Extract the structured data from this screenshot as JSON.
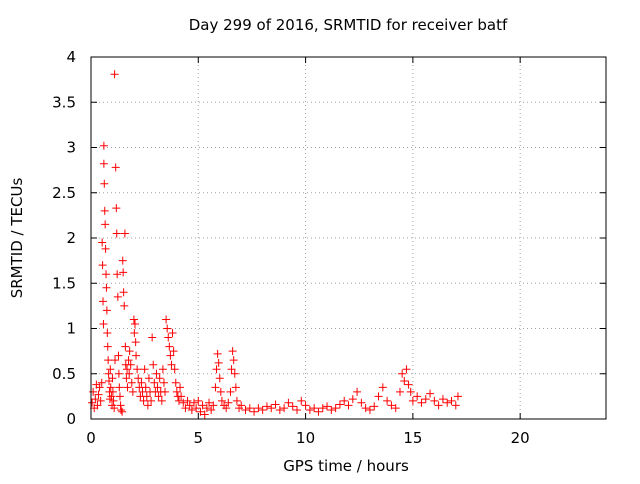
{
  "chart_data": {
    "type": "scatter",
    "title": "Day 299 of 2016, SRMTID for receiver batf",
    "xlabel": "GPS time / hours",
    "ylabel": "SRMTID / TECUs",
    "xlim": [
      0,
      24
    ],
    "ylim": [
      0,
      4
    ],
    "xticks": [
      0,
      5,
      10,
      15,
      20
    ],
    "yticks": [
      0,
      0.5,
      1,
      1.5,
      2,
      2.5,
      3,
      3.5,
      4
    ],
    "xtick_labels": [
      "0",
      "5",
      "10",
      "15",
      "20"
    ],
    "ytick_labels": [
      "0",
      "0.5",
      "1",
      "1.5",
      "2",
      "2.5",
      "3",
      "3.5",
      "4"
    ],
    "grid": true,
    "marker": "+",
    "color": "#ff0000",
    "series": [
      {
        "values": [
          [
            0.05,
            0.18
          ],
          [
            0.1,
            0.3
          ],
          [
            0.15,
            0.12
          ],
          [
            0.2,
            0.22
          ],
          [
            0.25,
            0.38
          ],
          [
            0.3,
            0.15
          ],
          [
            0.35,
            0.27
          ],
          [
            0.4,
            0.35
          ],
          [
            0.45,
            0.2
          ],
          [
            0.5,
            0.4
          ],
          [
            0.52,
            1.95
          ],
          [
            0.54,
            1.7
          ],
          [
            0.56,
            1.3
          ],
          [
            0.58,
            1.05
          ],
          [
            0.6,
            3.02
          ],
          [
            0.6,
            2.82
          ],
          [
            0.62,
            2.6
          ],
          [
            0.64,
            2.3
          ],
          [
            0.66,
            2.15
          ],
          [
            0.68,
            1.88
          ],
          [
            0.7,
            1.6
          ],
          [
            0.72,
            1.45
          ],
          [
            0.74,
            1.2
          ],
          [
            0.76,
            0.95
          ],
          [
            0.78,
            0.8
          ],
          [
            0.8,
            0.65
          ],
          [
            0.82,
            0.5
          ],
          [
            0.84,
            0.42
          ],
          [
            0.86,
            0.3
          ],
          [
            0.88,
            0.22
          ],
          [
            0.9,
            0.55
          ],
          [
            0.92,
            0.35
          ],
          [
            0.95,
            0.25
          ],
          [
            0.98,
            0.15
          ],
          [
            1.0,
            0.45
          ],
          [
            1.02,
            0.3
          ],
          [
            1.05,
            0.2
          ],
          [
            1.08,
            0.12
          ],
          [
            1.1,
            3.81
          ],
          [
            1.12,
            0.65
          ],
          [
            1.15,
            2.78
          ],
          [
            1.18,
            2.33
          ],
          [
            1.2,
            2.05
          ],
          [
            1.22,
            1.6
          ],
          [
            1.25,
            1.35
          ],
          [
            1.28,
            0.7
          ],
          [
            1.3,
            0.5
          ],
          [
            1.32,
            0.35
          ],
          [
            1.35,
            0.25
          ],
          [
            1.38,
            0.15
          ],
          [
            1.4,
            0.1
          ],
          [
            1.45,
            0.08
          ],
          [
            1.48,
            1.75
          ],
          [
            1.5,
            1.62
          ],
          [
            1.52,
            1.4
          ],
          [
            1.55,
            1.25
          ],
          [
            1.58,
            2.05
          ],
          [
            1.6,
            0.8
          ],
          [
            1.62,
            0.6
          ],
          [
            1.65,
            0.45
          ],
          [
            1.68,
            0.55
          ],
          [
            1.7,
            0.35
          ],
          [
            1.75,
            0.65
          ],
          [
            1.78,
            0.5
          ],
          [
            1.8,
            0.75
          ],
          [
            1.85,
            0.6
          ],
          [
            1.9,
            0.4
          ],
          [
            1.95,
            0.3
          ],
          [
            2.0,
            1.1
          ],
          [
            2.02,
            0.95
          ],
          [
            2.05,
            1.05
          ],
          [
            2.08,
            0.85
          ],
          [
            2.1,
            0.7
          ],
          [
            2.15,
            0.55
          ],
          [
            2.2,
            0.45
          ],
          [
            2.25,
            0.35
          ],
          [
            2.3,
            0.25
          ],
          [
            2.35,
            0.4
          ],
          [
            2.4,
            0.3
          ],
          [
            2.45,
            0.2
          ],
          [
            2.5,
            0.55
          ],
          [
            2.55,
            0.35
          ],
          [
            2.6,
            0.25
          ],
          [
            2.65,
            0.15
          ],
          [
            2.7,
            0.45
          ],
          [
            2.75,
            0.3
          ],
          [
            2.8,
            0.2
          ],
          [
            2.85,
            0.9
          ],
          [
            2.9,
            0.6
          ],
          [
            2.95,
            0.4
          ],
          [
            3.0,
            0.3
          ],
          [
            3.05,
            0.5
          ],
          [
            3.1,
            0.35
          ],
          [
            3.15,
            0.25
          ],
          [
            3.2,
            0.45
          ],
          [
            3.25,
            0.3
          ],
          [
            3.3,
            0.2
          ],
          [
            3.35,
            0.55
          ],
          [
            3.4,
            0.4
          ],
          [
            3.45,
            0.3
          ],
          [
            3.5,
            1.1
          ],
          [
            3.55,
            1.0
          ],
          [
            3.6,
            0.9
          ],
          [
            3.65,
            0.8
          ],
          [
            3.7,
            0.7
          ],
          [
            3.75,
            0.6
          ],
          [
            3.8,
            0.95
          ],
          [
            3.85,
            0.75
          ],
          [
            3.9,
            0.55
          ],
          [
            3.95,
            0.4
          ],
          [
            4.0,
            0.3
          ],
          [
            4.05,
            0.25
          ],
          [
            4.1,
            0.2
          ],
          [
            4.15,
            0.35
          ],
          [
            4.2,
            0.25
          ],
          [
            4.3,
            0.18
          ],
          [
            4.4,
            0.12
          ],
          [
            4.5,
            0.2
          ],
          [
            4.6,
            0.15
          ],
          [
            4.7,
            0.1
          ],
          [
            4.8,
            0.18
          ],
          [
            4.9,
            0.12
          ],
          [
            5.0,
            0.2
          ],
          [
            5.1,
            0.08
          ],
          [
            5.2,
            0.15
          ],
          [
            5.3,
            0.05
          ],
          [
            5.4,
            0.12
          ],
          [
            5.5,
            0.18
          ],
          [
            5.6,
            0.1
          ],
          [
            5.7,
            0.15
          ],
          [
            5.8,
            0.35
          ],
          [
            5.85,
            0.55
          ],
          [
            5.9,
            0.72
          ],
          [
            5.95,
            0.62
          ],
          [
            6.0,
            0.45
          ],
          [
            6.05,
            0.3
          ],
          [
            6.1,
            0.2
          ],
          [
            6.2,
            0.15
          ],
          [
            6.3,
            0.12
          ],
          [
            6.4,
            0.18
          ],
          [
            6.5,
            0.3
          ],
          [
            6.55,
            0.55
          ],
          [
            6.6,
            0.75
          ],
          [
            6.65,
            0.65
          ],
          [
            6.7,
            0.5
          ],
          [
            6.75,
            0.35
          ],
          [
            6.8,
            0.2
          ],
          [
            6.9,
            0.12
          ],
          [
            7.0,
            0.15
          ],
          [
            7.2,
            0.1
          ],
          [
            7.4,
            0.12
          ],
          [
            7.6,
            0.08
          ],
          [
            7.8,
            0.12
          ],
          [
            8.0,
            0.1
          ],
          [
            8.2,
            0.14
          ],
          [
            8.4,
            0.12
          ],
          [
            8.6,
            0.16
          ],
          [
            8.8,
            0.1
          ],
          [
            9.0,
            0.12
          ],
          [
            9.2,
            0.18
          ],
          [
            9.4,
            0.14
          ],
          [
            9.6,
            0.1
          ],
          [
            9.8,
            0.2
          ],
          [
            10.0,
            0.15
          ],
          [
            10.2,
            0.1
          ],
          [
            10.4,
            0.12
          ],
          [
            10.6,
            0.08
          ],
          [
            10.8,
            0.12
          ],
          [
            11.0,
            0.14
          ],
          [
            11.2,
            0.1
          ],
          [
            11.4,
            0.12
          ],
          [
            11.6,
            0.16
          ],
          [
            11.8,
            0.2
          ],
          [
            12.0,
            0.15
          ],
          [
            12.2,
            0.22
          ],
          [
            12.4,
            0.3
          ],
          [
            12.6,
            0.18
          ],
          [
            12.8,
            0.12
          ],
          [
            13.0,
            0.1
          ],
          [
            13.2,
            0.14
          ],
          [
            13.4,
            0.25
          ],
          [
            13.6,
            0.35
          ],
          [
            13.8,
            0.2
          ],
          [
            14.0,
            0.15
          ],
          [
            14.2,
            0.12
          ],
          [
            14.4,
            0.3
          ],
          [
            14.5,
            0.5
          ],
          [
            14.6,
            0.42
          ],
          [
            14.7,
            0.55
          ],
          [
            14.8,
            0.38
          ],
          [
            14.9,
            0.3
          ],
          [
            15.0,
            0.2
          ],
          [
            15.2,
            0.25
          ],
          [
            15.4,
            0.18
          ],
          [
            15.6,
            0.22
          ],
          [
            15.8,
            0.28
          ],
          [
            16.0,
            0.2
          ],
          [
            16.2,
            0.15
          ],
          [
            16.4,
            0.22
          ],
          [
            16.6,
            0.18
          ],
          [
            16.8,
            0.2
          ],
          [
            17.0,
            0.15
          ],
          [
            17.1,
            0.25
          ]
        ]
      }
    ]
  }
}
